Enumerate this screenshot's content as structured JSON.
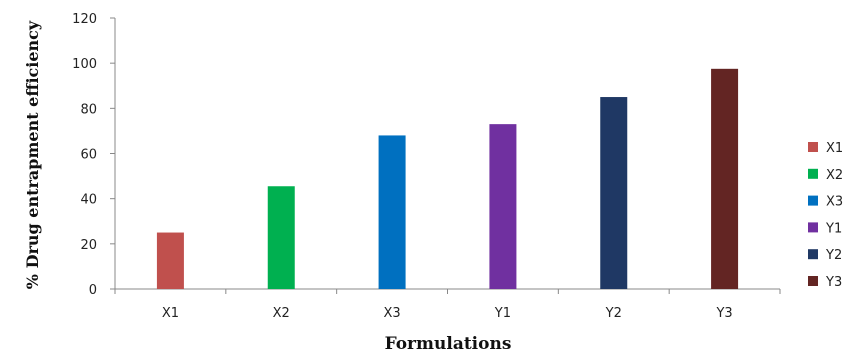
{
  "chart_data": {
    "type": "bar",
    "title": "",
    "xlabel": "Formulations",
    "ylabel": "% Drug entrapment efficiency",
    "ylim": [
      0,
      120
    ],
    "yticks": [
      0,
      20,
      40,
      60,
      80,
      100,
      120
    ],
    "categories": [
      "X1",
      "X2",
      "X3",
      "Y1",
      "Y2",
      "Y3"
    ],
    "values": [
      25,
      45.5,
      68,
      73,
      85,
      97.5
    ],
    "colors": [
      "#c0504d",
      "#00b050",
      "#0070c0",
      "#7030a0",
      "#1f3864",
      "#632523"
    ],
    "legend": {
      "placement": "right",
      "entries": [
        "X1",
        "X2",
        "X3",
        "Y1",
        "Y2",
        "Y3"
      ]
    },
    "grid": false
  }
}
